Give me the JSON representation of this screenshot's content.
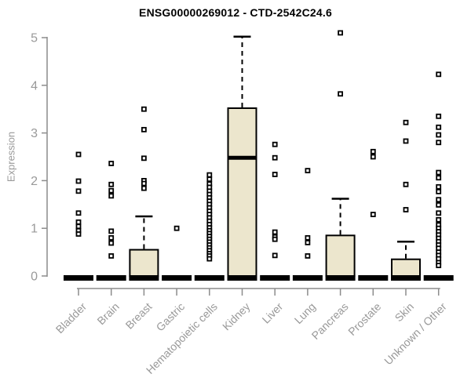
{
  "chart_data": {
    "type": "boxplot",
    "title": "ENSG00000269012 - CTD-2542C24.6",
    "ylabel": "Expression",
    "xlabel": "",
    "ylim": [
      0,
      5
    ],
    "yticks": [
      0,
      1,
      2,
      3,
      4,
      5
    ],
    "grid": false,
    "legend": false,
    "box_fill_color": "#ece6cd",
    "box_stroke_color": "#000000",
    "axis_color": "#8c8c8c",
    "label_color": "#999999",
    "categories": [
      "Bladder",
      "Brain",
      "Breast",
      "Gastric",
      "Hematopoietic cells",
      "Kidney",
      "Liver",
      "Lung",
      "Pancreas",
      "Prostate",
      "Skin",
      "Unknown / Other"
    ],
    "boxes": [
      {
        "category": "Bladder",
        "low": 0,
        "q1": 0,
        "median": 0,
        "q3": 0,
        "high": 0,
        "outliers": [
          2.55,
          1.99,
          1.78,
          1.32,
          1.13,
          1.04,
          0.95,
          0.88
        ]
      },
      {
        "category": "Brain",
        "low": 0,
        "q1": 0,
        "median": 0,
        "q3": 0,
        "high": 0,
        "outliers": [
          2.36,
          1.92,
          1.79,
          1.68,
          0.94,
          0.8,
          0.69,
          0.42
        ]
      },
      {
        "category": "Breast",
        "low": 0,
        "q1": 0,
        "median": 0,
        "q3": 0.55,
        "high": 1.25,
        "outliers": [
          3.5,
          3.07,
          2.47,
          2.0,
          1.94,
          1.84
        ]
      },
      {
        "category": "Gastric",
        "low": 0,
        "q1": 0,
        "median": 0,
        "q3": 0,
        "high": 0,
        "outliers": [
          1.0
        ]
      },
      {
        "category": "Hematopoietic cells",
        "low": 0,
        "q1": 0,
        "median": 0,
        "q3": 0,
        "high": 0,
        "outliers": [
          2.12,
          2.03,
          1.93,
          1.86,
          1.78,
          1.71,
          1.64,
          1.57,
          1.5,
          1.43,
          1.36,
          1.29,
          1.22,
          1.15,
          1.08,
          1.01,
          0.95,
          0.89,
          0.83,
          0.77,
          0.71,
          0.65,
          0.59,
          0.53,
          0.47,
          0.42,
          0.36
        ]
      },
      {
        "category": "Kidney",
        "low": 0,
        "q1": 0,
        "median": 2.48,
        "q3": 3.52,
        "high": 5.02,
        "outliers": []
      },
      {
        "category": "Liver",
        "low": 0,
        "q1": 0,
        "median": 0,
        "q3": 0,
        "high": 0,
        "outliers": [
          2.76,
          2.48,
          2.13,
          0.92,
          0.82,
          0.77,
          0.43
        ]
      },
      {
        "category": "Lung",
        "low": 0,
        "q1": 0,
        "median": 0,
        "q3": 0,
        "high": 0,
        "outliers": [
          2.21,
          0.8,
          0.7,
          0.42
        ]
      },
      {
        "category": "Pancreas",
        "low": 0,
        "q1": 0,
        "median": 0,
        "q3": 0.85,
        "high": 1.62,
        "outliers": [
          5.1,
          3.82
        ]
      },
      {
        "category": "Prostate",
        "low": 0,
        "q1": 0,
        "median": 0,
        "q3": 0,
        "high": 0,
        "outliers": [
          2.61,
          2.5,
          1.29
        ]
      },
      {
        "category": "Skin",
        "low": 0,
        "q1": 0,
        "median": 0,
        "q3": 0.35,
        "high": 0.72,
        "outliers": [
          3.22,
          2.83,
          1.92,
          1.39
        ]
      },
      {
        "category": "Unknown / Other",
        "low": 0,
        "q1": 0,
        "median": 0,
        "q3": 0,
        "high": 0,
        "outliers": [
          4.23,
          3.35,
          3.12,
          2.96,
          2.8,
          2.17,
          2.06,
          1.87,
          1.77,
          1.6,
          1.49,
          1.32,
          1.18,
          1.07,
          1.0,
          0.93,
          0.86,
          0.79,
          0.72,
          0.65,
          0.58,
          0.5,
          0.43,
          0.36,
          0.28,
          0.22
        ]
      }
    ]
  }
}
